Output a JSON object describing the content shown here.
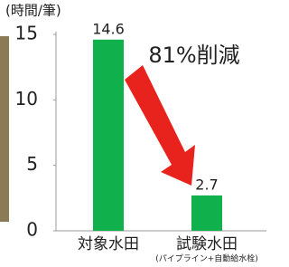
{
  "chart_data": {
    "type": "bar",
    "ylabel": "(時間/筆)",
    "categories": [
      "対象水田",
      "試験水田"
    ],
    "values": [
      14.6,
      2.7
    ],
    "color": "#10b04c",
    "notes": [
      "(パイプライン+自動給水栓)"
    ],
    "annotation": "81%削減",
    "annotation_color": "#e8231e",
    "ylim": [
      0,
      15
    ],
    "yticks": [
      0,
      5,
      10,
      15
    ],
    "grid": false
  }
}
